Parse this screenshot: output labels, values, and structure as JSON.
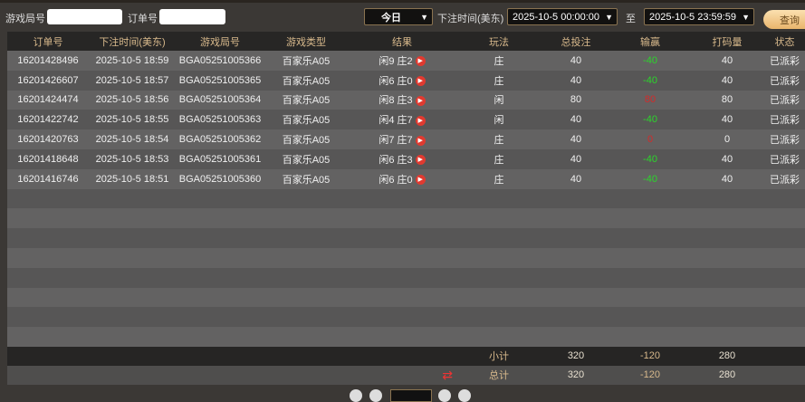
{
  "filters": {
    "round_label": "游戏局号",
    "round_value": "",
    "order_label": "订单号",
    "order_value": "",
    "period": "今日",
    "time_label": "下注时间(美东)",
    "start": "2025-10-5 00:00:00",
    "to_label": "至",
    "end": "2025-10-5 23:59:59",
    "query": "查询"
  },
  "columns": [
    "订单号",
    "下注时间(美东)",
    "游戏局号",
    "游戏类型",
    "结果",
    "玩法",
    "总投注",
    "输赢",
    "打码量",
    "状态"
  ],
  "rows": [
    [
      "16201428496",
      "2025-10-5 18:59",
      "BGA05251005366",
      "百家乐A05",
      "闲9 庄2",
      "庄",
      "40",
      "-40",
      "40",
      "已派彩"
    ],
    [
      "16201426607",
      "2025-10-5 18:57",
      "BGA05251005365",
      "百家乐A05",
      "闲6 庄0",
      "庄",
      "40",
      "-40",
      "40",
      "已派彩"
    ],
    [
      "16201424474",
      "2025-10-5 18:56",
      "BGA05251005364",
      "百家乐A05",
      "闲8 庄3",
      "闲",
      "80",
      "80",
      "80",
      "已派彩"
    ],
    [
      "16201422742",
      "2025-10-5 18:55",
      "BGA05251005363",
      "百家乐A05",
      "闲4 庄7",
      "闲",
      "40",
      "-40",
      "40",
      "已派彩"
    ],
    [
      "16201420763",
      "2025-10-5 18:54",
      "BGA05251005362",
      "百家乐A05",
      "闲7 庄7",
      "庄",
      "40",
      "0",
      "0",
      "已派彩"
    ],
    [
      "16201418648",
      "2025-10-5 18:53",
      "BGA05251005361",
      "百家乐A05",
      "闲6 庄3",
      "庄",
      "40",
      "-40",
      "40",
      "已派彩"
    ],
    [
      "16201416746",
      "2025-10-5 18:51",
      "BGA05251005360",
      "百家乐A05",
      "闲6 庄0",
      "庄",
      "40",
      "-40",
      "40",
      "已派彩"
    ]
  ],
  "subtotal": {
    "label": "小计",
    "bet": "320",
    "winloss": "-120",
    "turnover": "280"
  },
  "total": {
    "label": "总计",
    "bet": "320",
    "winloss": "-120",
    "turnover": "280"
  },
  "colors": {
    "win": "#2bd62b",
    "lose": "#d42a2a",
    "accent": "#d8b98c"
  }
}
